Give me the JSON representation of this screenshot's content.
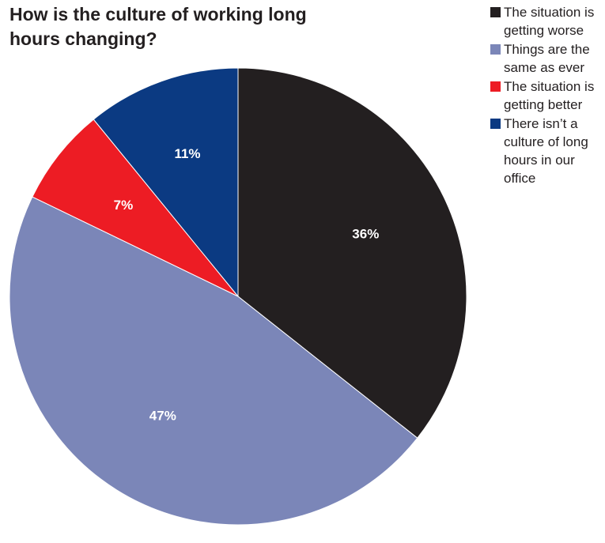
{
  "chart_data": {
    "type": "pie",
    "title": "How is the culture of working long hours changing?",
    "slices": [
      {
        "name": "The situation is getting worse",
        "value": 36,
        "label": "36%",
        "color": "#231f20"
      },
      {
        "name": "Things are the same as ever",
        "value": 47,
        "label": "47%",
        "color": "#7b86b8"
      },
      {
        "name": "The situation is getting better",
        "value": 7,
        "label": "7%",
        "color": "#ed1c24"
      },
      {
        "name": "There isn’t a culture of long hours in our office",
        "value": 11,
        "label": "11%",
        "color": "#0b3a82"
      }
    ],
    "legend_position": "top-right",
    "start": "12 o'clock",
    "direction": "clockwise"
  }
}
